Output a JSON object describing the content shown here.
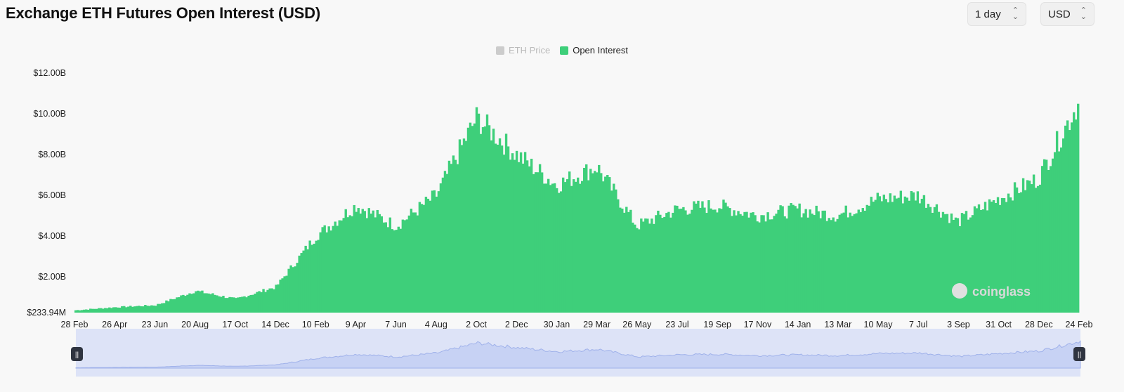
{
  "header": {
    "title": "Exchange ETH Futures Open Interest (USD)",
    "interval_select": "1 day",
    "currency_select": "USD"
  },
  "legend": [
    {
      "label": "ETH Price",
      "color": "#cccccc",
      "enabled": false
    },
    {
      "label": "Open Interest",
      "color": "#3ecf7a",
      "enabled": true
    }
  ],
  "watermark": "coinglass",
  "chart_data": {
    "type": "bar",
    "title": "Exchange ETH Futures Open Interest (USD)",
    "series": [
      {
        "name": "Open Interest",
        "color": "#3ecf7a"
      }
    ],
    "y_tick_labels": [
      "$233.94M",
      "$2.00B",
      "$4.00B",
      "$6.00B",
      "$8.00B",
      "$10.00B",
      "$12.00B"
    ],
    "y_tick_values": [
      0.23394,
      2,
      4,
      6,
      8,
      10,
      12
    ],
    "y_unit": "billion USD",
    "ylim": [
      0.23394,
      12
    ],
    "x_tick_labels": [
      "28 Feb",
      "26 Apr",
      "23 Jun",
      "20 Aug",
      "17 Oct",
      "14 Dec",
      "10 Feb",
      "9 Apr",
      "7 Jun",
      "4 Aug",
      "2 Oct",
      "2 Dec",
      "30 Jan",
      "29 Mar",
      "26 May",
      "23 Jul",
      "19 Sep",
      "17 Nov",
      "14 Jan",
      "13 Mar",
      "10 May",
      "7 Jul",
      "3 Sep",
      "31 Oct",
      "28 Dec",
      "24 Feb"
    ],
    "grid": false,
    "legend_position": "top-center",
    "approx_series_by_x_tick": [
      {
        "x": "28 Feb",
        "value": 0.35
      },
      {
        "x": "26 Apr",
        "value": 0.5
      },
      {
        "x": "23 Jun",
        "value": 0.6
      },
      {
        "x": "20 Aug",
        "value": 1.3
      },
      {
        "x": "17 Oct",
        "value": 0.9
      },
      {
        "x": "14 Dec",
        "value": 1.5
      },
      {
        "x": "10 Feb",
        "value": 4.0
      },
      {
        "x": "9 Apr",
        "value": 5.5
      },
      {
        "x": "7 Jun",
        "value": 4.5
      },
      {
        "x": "4 Aug",
        "value": 6.0
      },
      {
        "x": "2 Oct",
        "value": 9.8
      },
      {
        "x": "2 Dec",
        "value": 8.0
      },
      {
        "x": "30 Jan",
        "value": 6.5
      },
      {
        "x": "29 Mar",
        "value": 7.4
      },
      {
        "x": "26 May",
        "value": 4.5
      },
      {
        "x": "23 Jul",
        "value": 5.3
      },
      {
        "x": "19 Sep",
        "value": 5.5
      },
      {
        "x": "17 Nov",
        "value": 5.0
      },
      {
        "x": "14 Jan",
        "value": 5.3
      },
      {
        "x": "13 Mar",
        "value": 5.0
      },
      {
        "x": "10 May",
        "value": 5.8
      },
      {
        "x": "7 Jul",
        "value": 6.0
      },
      {
        "x": "3 Sep",
        "value": 4.7
      },
      {
        "x": "31 Oct",
        "value": 5.8
      },
      {
        "x": "28 Dec",
        "value": 6.8
      },
      {
        "x": "24 Feb",
        "value": 10.5
      }
    ]
  }
}
